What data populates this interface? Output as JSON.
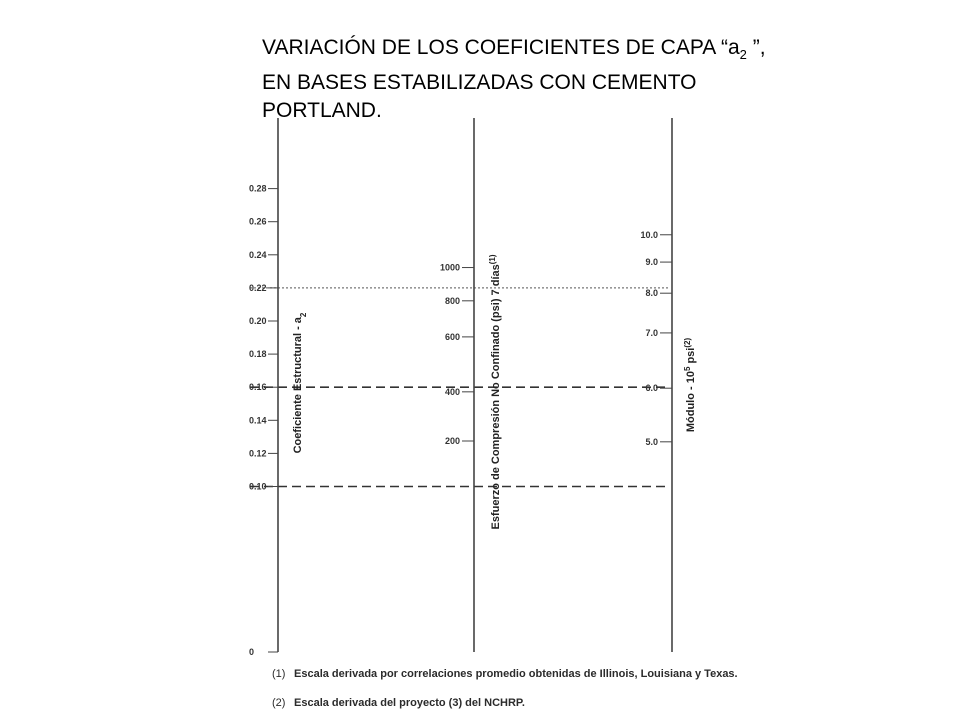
{
  "title": {
    "line1_pre": "VARIACIÓN DE LOS COEFICIENTES DE CAPA “a",
    "line1_sub": "2",
    "line1_post": " ”,",
    "line2": "EN BASES ESTABILIZADAS CON CEMENTO",
    "line3": "PORTLAND."
  },
  "chart_data": {
    "type": "nomograph",
    "axes": [
      {
        "id": "coef",
        "label": "Coeficiente Estructural  - a",
        "label_sub": "2",
        "label_sup": "",
        "label_post": "",
        "ticks": [
          {
            "label": "0.28",
            "value": 0.28
          },
          {
            "label": "0.26",
            "value": 0.26
          },
          {
            "label": "0.24",
            "value": 0.24
          },
          {
            "label": "0.22",
            "value": 0.22
          },
          {
            "label": "0.20",
            "value": 0.2
          },
          {
            "label": "0.18",
            "value": 0.18
          },
          {
            "label": "0.16",
            "value": 0.16
          },
          {
            "label": "0.14",
            "value": 0.14
          },
          {
            "label": "0.12",
            "value": 0.12
          },
          {
            "label": "0.10",
            "value": 0.1
          },
          {
            "label": "0",
            "value": 0.0
          }
        ]
      },
      {
        "id": "ucs",
        "label": "Esfuerzo de Compresión No Confinado (psi)    7 días",
        "label_sup": "(1)",
        "ticks": [
          {
            "label": "1000",
            "value": 1000,
            "coef": 0.2323
          },
          {
            "label": "800",
            "value": 800,
            "coef": 0.2122
          },
          {
            "label": "600",
            "value": 600,
            "coef": 0.1904
          },
          {
            "label": "400",
            "value": 400,
            "coef": 0.1572
          },
          {
            "label": "200",
            "value": 200,
            "coef": 0.1275
          }
        ]
      },
      {
        "id": "mod",
        "label": "Módulo  - 10",
        "label_sup": "5",
        "label_post": "  psi",
        "label_sup2": "(2)",
        "ticks": [
          {
            "label": "10.0",
            "value": 10.0,
            "coef": 0.2521
          },
          {
            "label": "9.0",
            "value": 9.0,
            "coef": 0.2356
          },
          {
            "label": "8.0",
            "value": 8.0,
            "coef": 0.2168
          },
          {
            "label": "7.0",
            "value": 7.0,
            "coef": 0.1928
          },
          {
            "label": "6.0",
            "value": 6.0,
            "coef": 0.1594
          },
          {
            "label": "5.0",
            "value": 5.0,
            "coef": 0.127
          }
        ]
      }
    ],
    "reference_lines": [
      {
        "coef": 0.22,
        "style": "dotted"
      },
      {
        "coef": 0.16,
        "style": "dashed"
      },
      {
        "coef": 0.1,
        "style": "dashed"
      }
    ],
    "notes": [
      {
        "num": "(1)",
        "text": "Escala derivada por correlaciones promedio obtenidas de Illinois, Louisiana y Texas."
      },
      {
        "num": "(2)",
        "text": "Escala derivada del proyecto (3) del NCHRP."
      }
    ]
  }
}
